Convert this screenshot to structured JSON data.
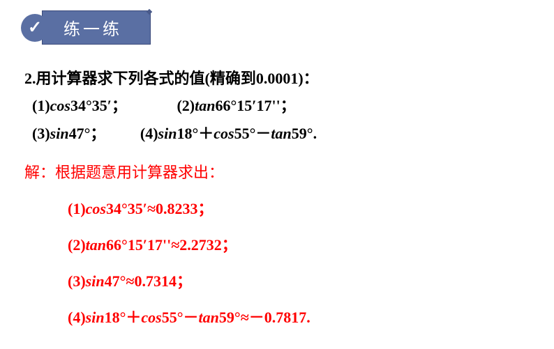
{
  "header": {
    "title": "练一练"
  },
  "question": {
    "prompt": "2.用计算器求下列各式的值(精确到0.0001)：",
    "items": {
      "q1": "(1)cos34°35′；",
      "q2": "(2)tan66°15′17''；",
      "q3": "(3)sin47°；",
      "q4": "(4)sin18°＋cos55°－tan59°."
    }
  },
  "answer": {
    "intro": "解：根据题意用计算器求出：",
    "lines": {
      "a1": "(1)cos34°35′≈0.8233；",
      "a2": "(2)tan66°15′17''≈2.2732；",
      "a3": "(3)sin47°≈0.7314；",
      "a4": "(4)sin18°＋cos55°－tan59°≈－0.7817."
    }
  },
  "styling": {
    "header_bg": "#5a6fa3",
    "header_text_color": "#ffffff",
    "question_color": "#000000",
    "answer_color": "#ff0000",
    "font_size_main": 22,
    "font_size_header": 24
  }
}
